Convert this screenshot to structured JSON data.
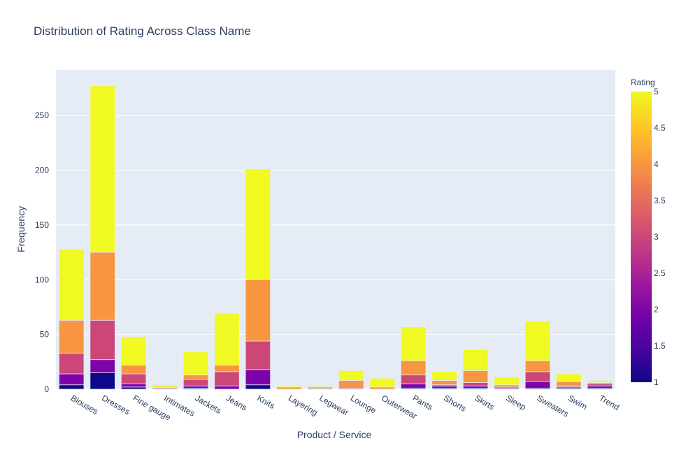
{
  "chart_data": {
    "type": "bar",
    "stacked": true,
    "title": "Distribution of Rating Across Class Name",
    "xlabel": "Product / Service",
    "ylabel": "Frequency",
    "ylim": [
      0,
      291.6
    ],
    "yticks": [
      0,
      50,
      100,
      150,
      200,
      250
    ],
    "grid": true,
    "categories": [
      "Blouses",
      "Dresses",
      "Fine gauge",
      "Intimates",
      "Jackets",
      "Jeans",
      "Knits",
      "Layering",
      "Legwear",
      "Lounge",
      "Outerwear",
      "Pants",
      "Shorts",
      "Skirts",
      "Sleep",
      "Sweaters",
      "Swim",
      "Trend"
    ],
    "series": [
      {
        "rating": 1,
        "color": "#0d0887",
        "values": [
          4,
          15,
          2,
          0,
          1,
          0,
          4,
          0,
          0,
          0,
          0,
          1,
          1,
          1,
          0,
          1,
          1,
          1
        ]
      },
      {
        "rating": 2,
        "color": "#7e03a8",
        "values": [
          10,
          12,
          3,
          0,
          2,
          3,
          14,
          0,
          0,
          0,
          0,
          4,
          2,
          2,
          1,
          6,
          1,
          2
        ]
      },
      {
        "rating": 3,
        "color": "#cc4778",
        "values": [
          19,
          36,
          9,
          1,
          6,
          13,
          26,
          0,
          1,
          1,
          0,
          8,
          1,
          3,
          1,
          9,
          1,
          2
        ]
      },
      {
        "rating": 4,
        "color": "#f89540",
        "values": [
          30,
          62,
          8,
          0,
          4,
          6,
          56,
          2,
          1,
          7,
          2,
          13,
          4,
          11,
          2,
          10,
          4,
          1
        ]
      },
      {
        "rating": 5,
        "color": "#f0f921",
        "values": [
          65,
          152,
          26,
          3,
          21,
          47,
          101,
          1,
          1,
          9,
          8,
          31,
          8,
          19,
          7,
          36,
          7,
          2
        ]
      }
    ],
    "colorbar": {
      "title": "Rating",
      "range": [
        1,
        5
      ],
      "ticks": [
        "1",
        "1.5",
        "2",
        "2.5",
        "3",
        "3.5",
        "4",
        "4.5",
        "5"
      ],
      "colorscale": [
        "#0d0887",
        "#46039f",
        "#7201a8",
        "#9c179e",
        "#bd3786",
        "#d8576b",
        "#ed7953",
        "#fb9f3a",
        "#fdca26",
        "#f0f921"
      ]
    }
  }
}
